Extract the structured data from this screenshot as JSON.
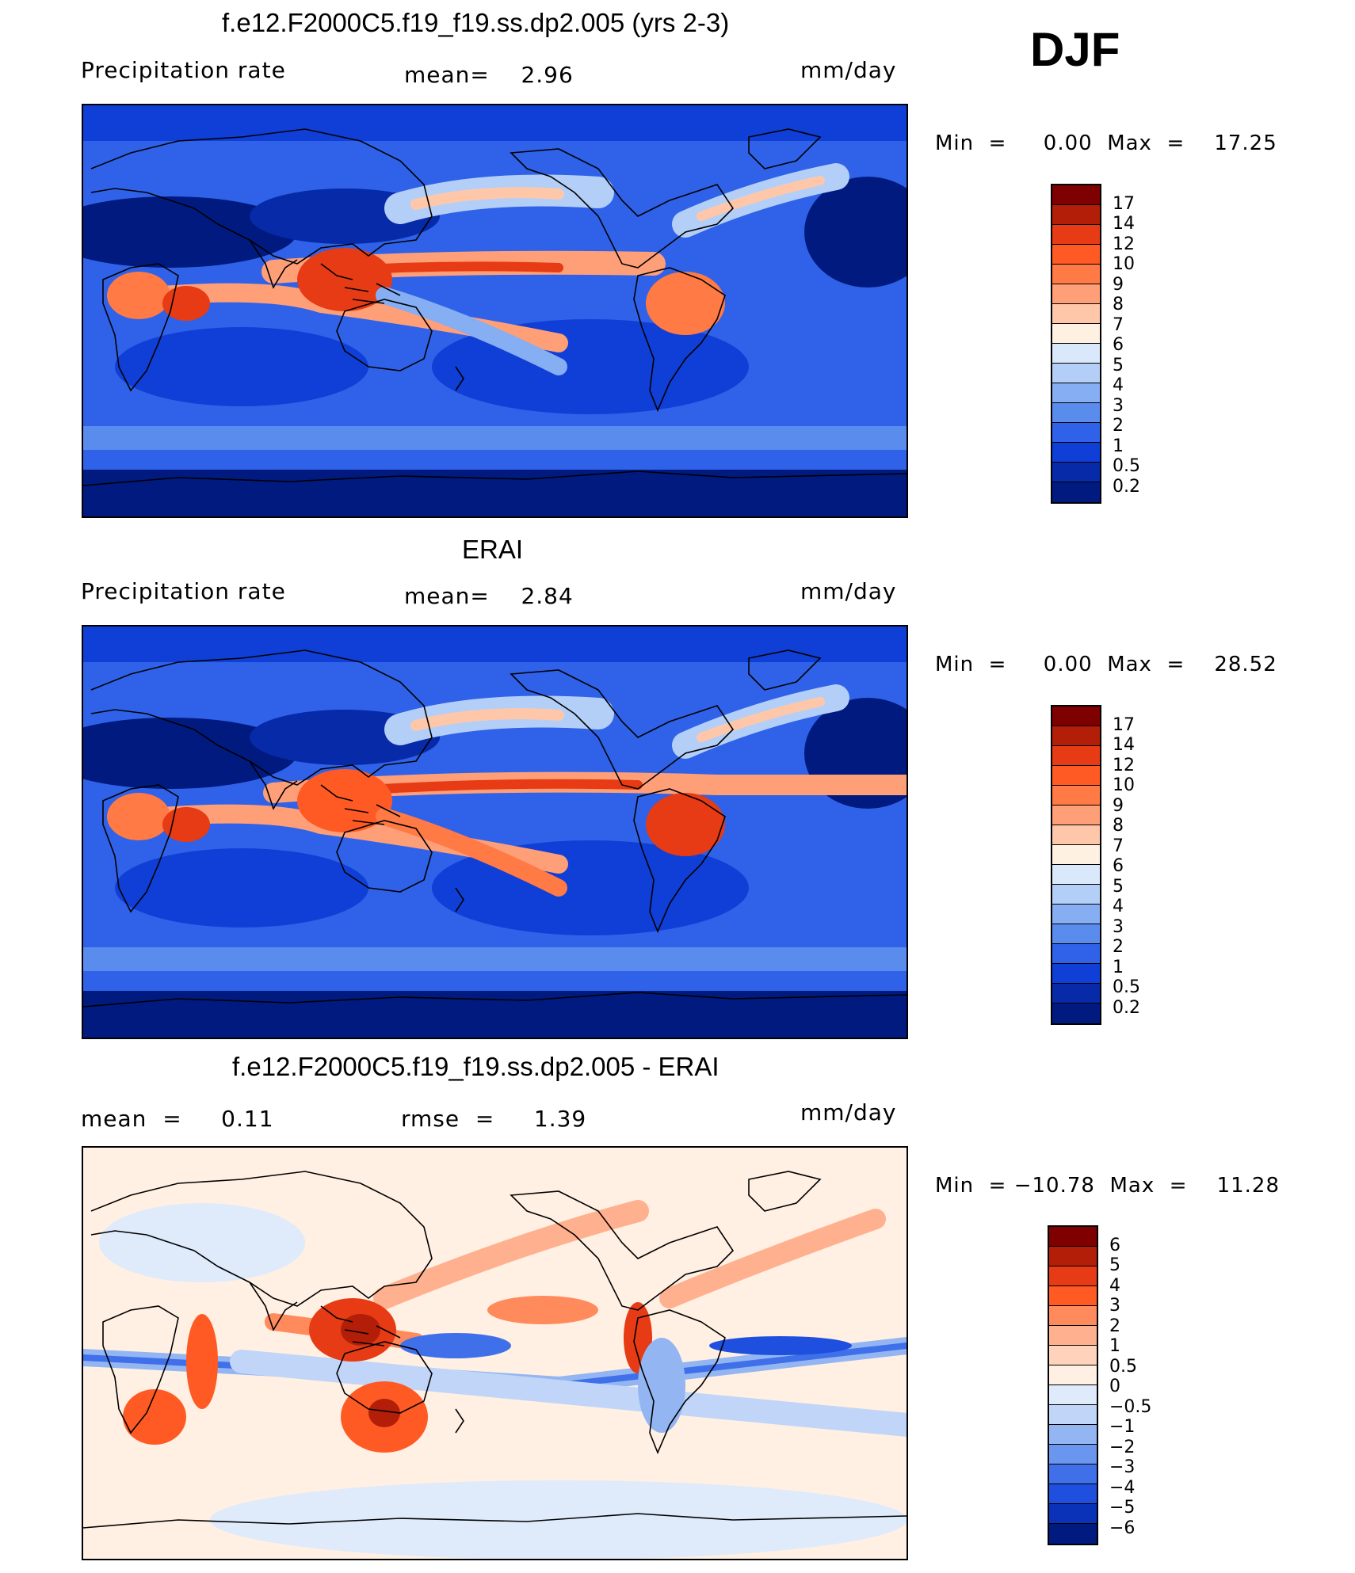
{
  "season": "DJF",
  "panels": [
    {
      "title": "f.e12.F2000C5.f19_f19.ss.dp2.005 (yrs 2-3)",
      "left_label": "Precipitation  rate",
      "center_label": "mean=    2.96",
      "units": "mm/day",
      "minmax": "Min  =     0.00  Max  =    17.25",
      "colorbar": {
        "labels": [
          "17",
          "14",
          "12",
          "10",
          "9",
          "8",
          "7",
          "6",
          "5",
          "4",
          "3",
          "2",
          "1",
          "0.5",
          "0.2"
        ],
        "colors": [
          "#7f0000",
          "#b31e08",
          "#e63b14",
          "#ff5a24",
          "#ff7a44",
          "#ff9f78",
          "#ffc7aa",
          "#fff1e2",
          "#d9e8fb",
          "#b3cff7",
          "#86aef2",
          "#5a8cee",
          "#2f62e8",
          "#0f3fd6",
          "#062aa8",
          "#001a80"
        ]
      },
      "map_type": "model precipitation"
    },
    {
      "title": "ERAI",
      "left_label": "Precipitation  rate",
      "center_label": "mean=    2.84",
      "units": "mm/day",
      "minmax": "Min  =     0.00  Max  =    28.52",
      "colorbar": {
        "labels": [
          "17",
          "14",
          "12",
          "10",
          "9",
          "8",
          "7",
          "6",
          "5",
          "4",
          "3",
          "2",
          "1",
          "0.5",
          "0.2"
        ],
        "colors": [
          "#7f0000",
          "#b31e08",
          "#e63b14",
          "#ff5a24",
          "#ff7a44",
          "#ff9f78",
          "#ffc7aa",
          "#fff1e2",
          "#d9e8fb",
          "#b3cff7",
          "#86aef2",
          "#5a8cee",
          "#2f62e8",
          "#0f3fd6",
          "#062aa8",
          "#001a80"
        ]
      },
      "map_type": "reanalysis precipitation"
    },
    {
      "title": "f.e12.F2000C5.f19_f19.ss.dp2.005 - ERAI",
      "left_label": "mean  =     0.11",
      "center_label": "rmse  =     1.39",
      "units": "mm/day",
      "minmax": "Min  = −10.78  Max  =    11.28",
      "colorbar": {
        "labels": [
          "6",
          "5",
          "4",
          "3",
          "2",
          "1",
          "0.5",
          "0",
          "−0.5",
          "−1",
          "−2",
          "−3",
          "−4",
          "−5",
          "−6"
        ],
        "colors": [
          "#7f0000",
          "#b31e08",
          "#e63b14",
          "#ff5a24",
          "#ff8a5c",
          "#ffb08f",
          "#ffd3bb",
          "#fff0e3",
          "#dfeafb",
          "#c0d5f7",
          "#93b6f3",
          "#6b96ef",
          "#3f70ea",
          "#1e4fdf",
          "#0a32b8",
          "#001a80"
        ]
      },
      "map_type": "difference"
    }
  ]
}
